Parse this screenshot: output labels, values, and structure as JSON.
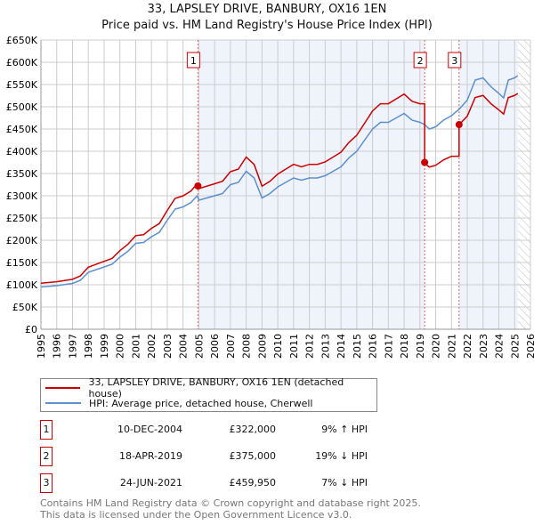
{
  "chart_data": {
    "type": "line",
    "title": "33, LAPSLEY DRIVE, BANBURY, OX16 1EN",
    "subtitle": "Price paid vs. HM Land Registry's House Price Index (HPI)",
    "xlim": [
      1995,
      2026
    ],
    "ylim": [
      0,
      650000
    ],
    "yticks": [
      "£0",
      "£50K",
      "£100K",
      "£150K",
      "£200K",
      "£250K",
      "£300K",
      "£350K",
      "£400K",
      "£450K",
      "£500K",
      "£550K",
      "£600K",
      "£650K"
    ],
    "xticks": [
      "1995",
      "1996",
      "1997",
      "1998",
      "1999",
      "2000",
      "2001",
      "2002",
      "2003",
      "2004",
      "2005",
      "2006",
      "2007",
      "2008",
      "2009",
      "2010",
      "2011",
      "2012",
      "2013",
      "2014",
      "2015",
      "2016",
      "2017",
      "2018",
      "2019",
      "2020",
      "2021",
      "2022",
      "2023",
      "2024",
      "2025",
      "2026"
    ],
    "hpi_x": [
      1995,
      1996,
      1997,
      1997.5,
      1998,
      1999,
      1999.5,
      2000,
      2000.5,
      2001,
      2001.5,
      2002,
      2002.5,
      2003,
      2003.5,
      2004,
      2004.5,
      2004.9,
      2005,
      2006,
      2006.5,
      2007,
      2007.5,
      2008,
      2008.5,
      2009,
      2009.5,
      2010,
      2010.5,
      2011,
      2011.5,
      2012,
      2012.5,
      2013,
      2013.5,
      2014,
      2014.5,
      2015,
      2015.5,
      2016,
      2016.5,
      2017,
      2017.5,
      2018,
      2018.5,
      2019,
      2019.3,
      2019.6,
      2020,
      2020.5,
      2021,
      2021.5,
      2022,
      2022.5,
      2023,
      2023.5,
      2024,
      2024.3,
      2024.6,
      2025,
      2025.2
    ],
    "hpi_y": [
      95,
      98,
      103,
      110,
      128,
      140,
      146,
      162,
      175,
      193,
      195,
      208,
      218,
      245,
      270,
      275,
      285,
      300,
      290,
      300,
      305,
      325,
      330,
      355,
      340,
      295,
      305,
      320,
      330,
      340,
      335,
      340,
      340,
      345,
      355,
      365,
      385,
      400,
      425,
      450,
      465,
      465,
      475,
      485,
      470,
      465,
      460,
      450,
      455,
      470,
      480,
      495,
      515,
      560,
      565,
      545,
      530,
      520,
      560,
      565,
      570
    ],
    "hpi_unit": "£K",
    "series": [
      {
        "name": "33, LAPSLEY DRIVE, BANBURY, OX16 1EN (detached house)",
        "color": "#cc0000"
      },
      {
        "name": "HPI: Average price, detached house, Cherwell",
        "color": "#5b8fd0"
      }
    ],
    "sales": [
      {
        "num": "1",
        "x": 2004.94,
        "y": 322000,
        "date": "10-DEC-2004",
        "price": "£322,000",
        "hpi": "9% ↑ HPI"
      },
      {
        "num": "2",
        "x": 2019.3,
        "y": 375000,
        "date": "18-APR-2019",
        "price": "£375,000",
        "hpi": "19% ↓ HPI"
      },
      {
        "num": "3",
        "x": 2021.48,
        "y": 459950,
        "date": "24-JUN-2021",
        "price": "£459,950",
        "hpi": "7% ↓ HPI"
      }
    ]
  },
  "footer": {
    "line1": "Contains HM Land Registry data © Crown copyright and database right 2025.",
    "line2": "This data is licensed under the Open Government Licence v3.0."
  }
}
